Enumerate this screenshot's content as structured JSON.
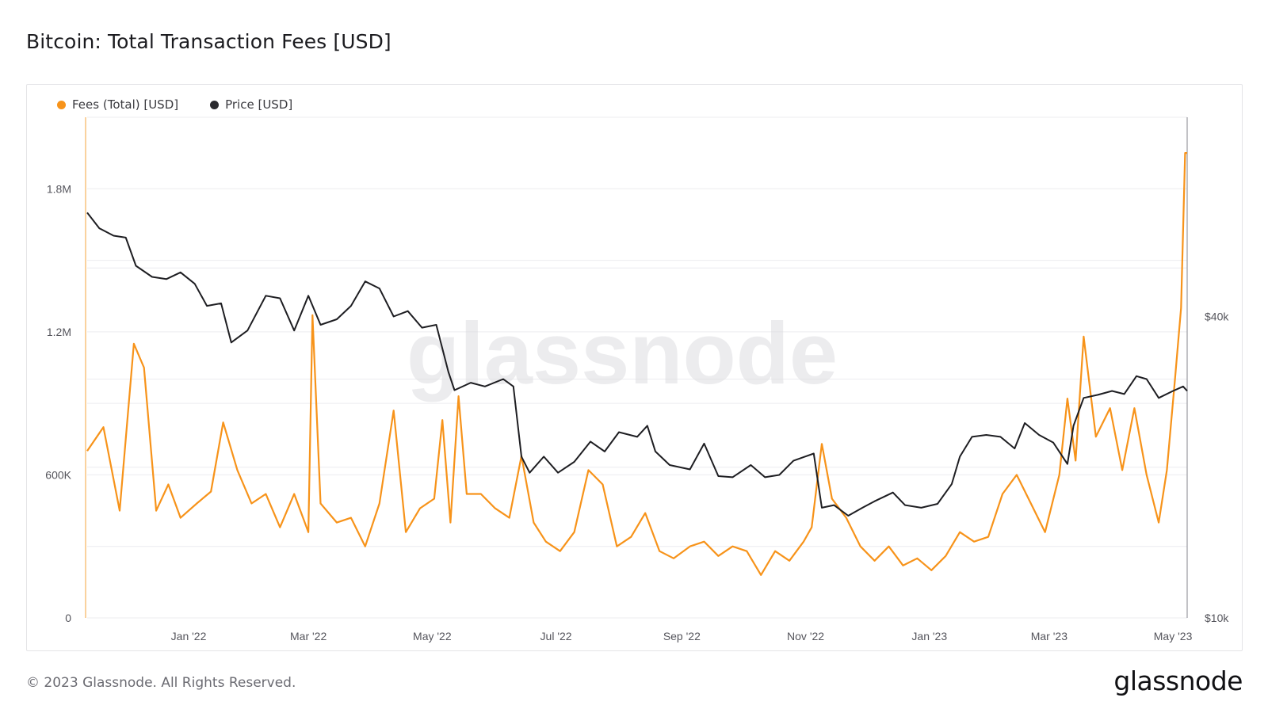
{
  "header": {
    "title": "Bitcoin: Total Transaction Fees [USD]"
  },
  "footer": {
    "copyright": "© 2023 Glassnode. All Rights Reserved.",
    "brand": "glassnode"
  },
  "watermark": "glassnode",
  "colors": {
    "fees": "#f7931a",
    "price": "#1e1e22",
    "grid": "#ececef",
    "axis_text": "#55555c"
  },
  "chart_data": {
    "type": "line",
    "title": "Bitcoin: Total Transaction Fees [USD]",
    "xlabel": "",
    "legend_position": "top-left",
    "x_ticks": [
      "Jan '22",
      "Mar '22",
      "May '22",
      "Jul '22",
      "Sep '22",
      "Nov '22",
      "Jan '23",
      "Mar '23",
      "May '23"
    ],
    "x_range": [
      "2021-11-12",
      "2023-05-08"
    ],
    "y_left": {
      "ticks": [
        "0",
        "600K",
        "1.2M",
        "1.8M"
      ],
      "range": [
        0,
        2100000
      ]
    },
    "y_right": {
      "ticks": [
        "$10k",
        "$40k"
      ],
      "scale": "log",
      "range": [
        10000,
        100000
      ]
    },
    "grid": true,
    "series": [
      {
        "name": "Fees (Total) [USD]",
        "axis": "left",
        "points": [
          [
            "2021-11-12",
            700000
          ],
          [
            "2021-11-20",
            800000
          ],
          [
            "2021-11-28",
            450000
          ],
          [
            "2021-12-05",
            1150000
          ],
          [
            "2021-12-10",
            1050000
          ],
          [
            "2021-12-16",
            450000
          ],
          [
            "2021-12-22",
            560000
          ],
          [
            "2021-12-28",
            420000
          ],
          [
            "2022-01-05",
            480000
          ],
          [
            "2022-01-12",
            530000
          ],
          [
            "2022-01-18",
            820000
          ],
          [
            "2022-01-25",
            620000
          ],
          [
            "2022-02-01",
            480000
          ],
          [
            "2022-02-08",
            520000
          ],
          [
            "2022-02-15",
            380000
          ],
          [
            "2022-02-22",
            520000
          ],
          [
            "2022-03-01",
            360000
          ],
          [
            "2022-03-03",
            1270000
          ],
          [
            "2022-03-07",
            480000
          ],
          [
            "2022-03-15",
            400000
          ],
          [
            "2022-03-22",
            420000
          ],
          [
            "2022-03-29",
            300000
          ],
          [
            "2022-04-05",
            480000
          ],
          [
            "2022-04-12",
            870000
          ],
          [
            "2022-04-18",
            360000
          ],
          [
            "2022-04-25",
            460000
          ],
          [
            "2022-05-02",
            500000
          ],
          [
            "2022-05-06",
            830000
          ],
          [
            "2022-05-10",
            400000
          ],
          [
            "2022-05-14",
            930000
          ],
          [
            "2022-05-18",
            520000
          ],
          [
            "2022-05-25",
            520000
          ],
          [
            "2022-06-01",
            460000
          ],
          [
            "2022-06-08",
            420000
          ],
          [
            "2022-06-14",
            680000
          ],
          [
            "2022-06-20",
            400000
          ],
          [
            "2022-06-26",
            320000
          ],
          [
            "2022-07-03",
            280000
          ],
          [
            "2022-07-10",
            360000
          ],
          [
            "2022-07-17",
            620000
          ],
          [
            "2022-07-24",
            560000
          ],
          [
            "2022-07-31",
            300000
          ],
          [
            "2022-08-07",
            340000
          ],
          [
            "2022-08-14",
            440000
          ],
          [
            "2022-08-21",
            280000
          ],
          [
            "2022-08-28",
            250000
          ],
          [
            "2022-09-05",
            300000
          ],
          [
            "2022-09-12",
            320000
          ],
          [
            "2022-09-19",
            260000
          ],
          [
            "2022-09-26",
            300000
          ],
          [
            "2022-10-03",
            280000
          ],
          [
            "2022-10-10",
            180000
          ],
          [
            "2022-10-17",
            280000
          ],
          [
            "2022-10-24",
            240000
          ],
          [
            "2022-10-31",
            320000
          ],
          [
            "2022-11-04",
            380000
          ],
          [
            "2022-11-09",
            730000
          ],
          [
            "2022-11-14",
            500000
          ],
          [
            "2022-11-21",
            420000
          ],
          [
            "2022-11-28",
            300000
          ],
          [
            "2022-12-05",
            240000
          ],
          [
            "2022-12-12",
            300000
          ],
          [
            "2022-12-19",
            220000
          ],
          [
            "2022-12-26",
            250000
          ],
          [
            "2023-01-02",
            200000
          ],
          [
            "2023-01-09",
            260000
          ],
          [
            "2023-01-16",
            360000
          ],
          [
            "2023-01-23",
            320000
          ],
          [
            "2023-01-30",
            340000
          ],
          [
            "2023-02-06",
            520000
          ],
          [
            "2023-02-13",
            600000
          ],
          [
            "2023-02-20",
            480000
          ],
          [
            "2023-02-27",
            360000
          ],
          [
            "2023-03-06",
            600000
          ],
          [
            "2023-03-10",
            920000
          ],
          [
            "2023-03-14",
            660000
          ],
          [
            "2023-03-18",
            1180000
          ],
          [
            "2023-03-24",
            760000
          ],
          [
            "2023-03-31",
            880000
          ],
          [
            "2023-04-06",
            620000
          ],
          [
            "2023-04-12",
            880000
          ],
          [
            "2023-04-18",
            600000
          ],
          [
            "2023-04-24",
            400000
          ],
          [
            "2023-04-28",
            620000
          ],
          [
            "2023-05-02",
            1000000
          ],
          [
            "2023-05-05",
            1300000
          ],
          [
            "2023-05-07",
            1950000
          ],
          [
            "2023-05-08",
            1950000
          ]
        ]
      },
      {
        "name": "Price [USD]",
        "axis": "right",
        "points": [
          [
            "2021-11-12",
            64500
          ],
          [
            "2021-11-18",
            60000
          ],
          [
            "2021-11-25",
            58000
          ],
          [
            "2021-12-01",
            57500
          ],
          [
            "2021-12-06",
            50500
          ],
          [
            "2021-12-14",
            48000
          ],
          [
            "2021-12-21",
            47500
          ],
          [
            "2021-12-28",
            49000
          ],
          [
            "2022-01-04",
            46500
          ],
          [
            "2022-01-10",
            42000
          ],
          [
            "2022-01-17",
            42500
          ],
          [
            "2022-01-22",
            35500
          ],
          [
            "2022-01-30",
            37500
          ],
          [
            "2022-02-08",
            44000
          ],
          [
            "2022-02-15",
            43500
          ],
          [
            "2022-02-22",
            37500
          ],
          [
            "2022-03-01",
            44000
          ],
          [
            "2022-03-07",
            38500
          ],
          [
            "2022-03-15",
            39500
          ],
          [
            "2022-03-22",
            42000
          ],
          [
            "2022-03-29",
            47000
          ],
          [
            "2022-04-05",
            45500
          ],
          [
            "2022-04-12",
            40000
          ],
          [
            "2022-04-19",
            41000
          ],
          [
            "2022-04-26",
            38000
          ],
          [
            "2022-05-03",
            38500
          ],
          [
            "2022-05-09",
            31000
          ],
          [
            "2022-05-12",
            28500
          ],
          [
            "2022-05-20",
            29500
          ],
          [
            "2022-05-27",
            29000
          ],
          [
            "2022-06-05",
            30000
          ],
          [
            "2022-06-10",
            29000
          ],
          [
            "2022-06-14",
            21000
          ],
          [
            "2022-06-18",
            19500
          ],
          [
            "2022-06-25",
            21000
          ],
          [
            "2022-07-02",
            19500
          ],
          [
            "2022-07-10",
            20500
          ],
          [
            "2022-07-18",
            22500
          ],
          [
            "2022-07-25",
            21500
          ],
          [
            "2022-08-01",
            23500
          ],
          [
            "2022-08-10",
            23000
          ],
          [
            "2022-08-15",
            24200
          ],
          [
            "2022-08-19",
            21500
          ],
          [
            "2022-08-26",
            20200
          ],
          [
            "2022-09-05",
            19800
          ],
          [
            "2022-09-12",
            22300
          ],
          [
            "2022-09-19",
            19200
          ],
          [
            "2022-09-26",
            19100
          ],
          [
            "2022-10-05",
            20200
          ],
          [
            "2022-10-12",
            19100
          ],
          [
            "2022-10-19",
            19300
          ],
          [
            "2022-10-26",
            20600
          ],
          [
            "2022-11-05",
            21300
          ],
          [
            "2022-11-09",
            16600
          ],
          [
            "2022-11-15",
            16800
          ],
          [
            "2022-11-22",
            16000
          ],
          [
            "2022-11-29",
            16600
          ],
          [
            "2022-12-05",
            17100
          ],
          [
            "2022-12-14",
            17800
          ],
          [
            "2022-12-20",
            16800
          ],
          [
            "2022-12-28",
            16600
          ],
          [
            "2023-01-05",
            16900
          ],
          [
            "2023-01-12",
            18500
          ],
          [
            "2023-01-16",
            21000
          ],
          [
            "2023-01-22",
            23000
          ],
          [
            "2023-01-29",
            23200
          ],
          [
            "2023-02-05",
            23000
          ],
          [
            "2023-02-12",
            21800
          ],
          [
            "2023-02-17",
            24500
          ],
          [
            "2023-02-24",
            23200
          ],
          [
            "2023-03-03",
            22400
          ],
          [
            "2023-03-10",
            20300
          ],
          [
            "2023-03-13",
            24200
          ],
          [
            "2023-03-18",
            27500
          ],
          [
            "2023-03-25",
            27900
          ],
          [
            "2023-04-01",
            28400
          ],
          [
            "2023-04-07",
            28000
          ],
          [
            "2023-04-13",
            30400
          ],
          [
            "2023-04-18",
            30000
          ],
          [
            "2023-04-24",
            27500
          ],
          [
            "2023-05-01",
            28400
          ],
          [
            "2023-05-06",
            29000
          ],
          [
            "2023-05-08",
            28400
          ]
        ]
      }
    ]
  }
}
